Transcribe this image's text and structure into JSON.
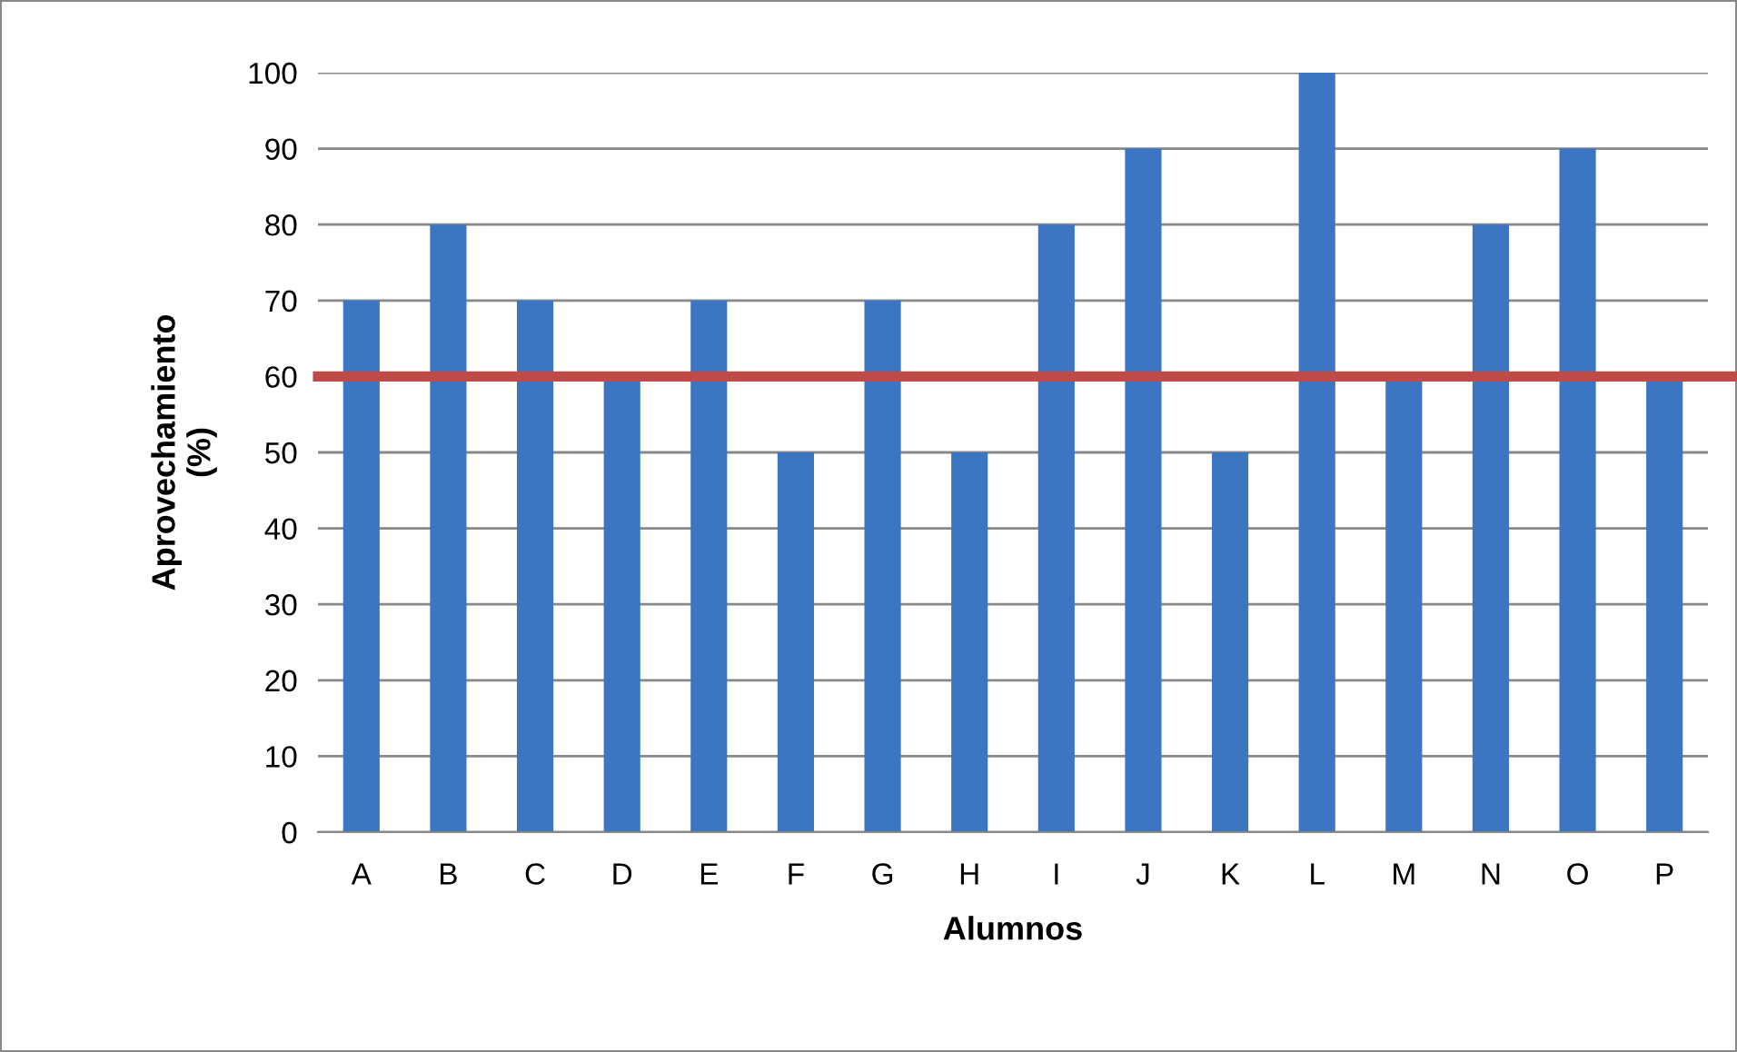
{
  "chart_data": {
    "type": "bar",
    "xlabel": "Alumnos",
    "ylabel": "Aprovechamiento\n(%)",
    "categories": [
      "A",
      "B",
      "C",
      "D",
      "E",
      "F",
      "G",
      "H",
      "I",
      "J",
      "K",
      "L",
      "M",
      "N",
      "O",
      "P"
    ],
    "values": [
      70,
      80,
      70,
      60,
      70,
      50,
      70,
      50,
      80,
      90,
      50,
      100,
      60,
      80,
      90,
      60
    ],
    "color": "#3c76c2",
    "ylim": [
      0,
      100
    ],
    "yticks": [
      0,
      10,
      20,
      30,
      40,
      50,
      60,
      70,
      80,
      90,
      100
    ],
    "grid": "y",
    "ref_lines": [
      {
        "axis": "y",
        "value": 60,
        "color": "#be4b48"
      }
    ]
  }
}
